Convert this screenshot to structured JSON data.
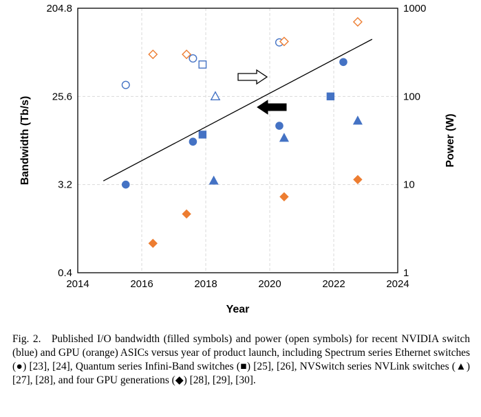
{
  "chart_data": {
    "type": "scatter",
    "xlabel": "Year",
    "ylabel_left": "Bandwidth (Tb/s)",
    "ylabel_right": "Power (W)",
    "xlim": [
      2014,
      2024
    ],
    "x_ticks": [
      "2014",
      "2016",
      "2018",
      "2020",
      "2022",
      "2024"
    ],
    "ylim_left": [
      0.4,
      204.8
    ],
    "yscale_left": "log",
    "y_ticks_left": [
      "0.4",
      "3.2",
      "25.6",
      "204.8"
    ],
    "ylim_right": [
      1,
      1000
    ],
    "yscale_right": "log",
    "y_ticks_right": [
      "1",
      "10",
      "100",
      "1000"
    ],
    "grid": true,
    "colors": {
      "switch": "#4472c4",
      "gpu": "#ed7d31"
    },
    "bandwidth": [
      {
        "marker": "circle",
        "group": "switch",
        "points": [
          [
            2015.5,
            3.2
          ],
          [
            2017.6,
            8.8
          ],
          [
            2020.3,
            12.8
          ],
          [
            2022.3,
            57.6
          ]
        ]
      },
      {
        "marker": "square",
        "group": "switch",
        "points": [
          [
            2017.9,
            10.4
          ],
          [
            2021.9,
            25.6
          ]
        ]
      },
      {
        "marker": "triangle",
        "group": "switch",
        "points": [
          [
            2018.25,
            3.5
          ],
          [
            2020.45,
            9.6
          ],
          [
            2022.75,
            14.4
          ]
        ]
      },
      {
        "marker": "diamond",
        "group": "gpu",
        "points": [
          [
            2016.35,
            0.8
          ],
          [
            2017.4,
            1.6
          ],
          [
            2020.45,
            2.4
          ],
          [
            2022.75,
            3.6
          ]
        ]
      }
    ],
    "power": [
      {
        "marker": "circle",
        "group": "switch",
        "points": [
          [
            2015.5,
            135
          ],
          [
            2017.6,
            270
          ],
          [
            2020.3,
            410
          ]
        ]
      },
      {
        "marker": "square",
        "group": "switch",
        "points": [
          [
            2017.9,
            230
          ]
        ]
      },
      {
        "marker": "triangle",
        "group": "switch",
        "points": [
          [
            2018.3,
            100
          ]
        ]
      },
      {
        "marker": "diamond",
        "group": "gpu",
        "points": [
          [
            2016.35,
            300
          ],
          [
            2017.4,
            300
          ],
          [
            2020.45,
            420
          ],
          [
            2022.75,
            700
          ]
        ]
      }
    ],
    "trend_line": {
      "axis": "right",
      "points": [
        [
          2014.8,
          11
        ],
        [
          2023.2,
          445
        ]
      ]
    },
    "arrows": [
      {
        "style": "open",
        "direction": "right"
      },
      {
        "style": "filled",
        "direction": "left"
      }
    ]
  },
  "caption": "Fig. 2. Published I/O bandwidth (filled symbols) and power (open symbols) for recent NVIDIA switch (blue) and GPU (orange) ASICs versus year of product launch, including Spectrum series Ethernet switches (●) [23], [24], Quantum series Infini-Band switches (■) [25], [26], NVSwitch series NVLink switches (▲) [27], [28], and four GPU generations (◆) [28], [29], [30]."
}
